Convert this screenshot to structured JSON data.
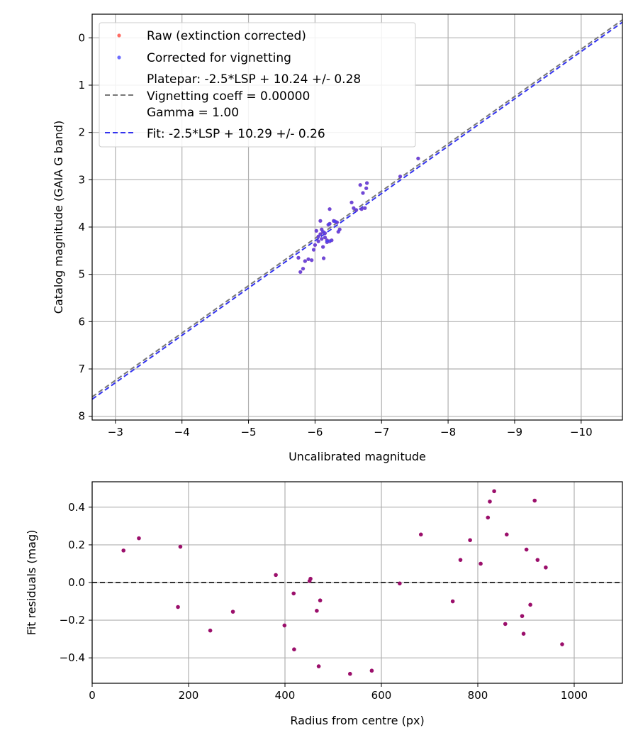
{
  "chart_data": [
    {
      "type": "scatter",
      "xlabel": "Uncalibrated magnitude",
      "ylabel": "Catalog magnitude (GAIA G band)",
      "xlim": [
        -2.65,
        -10.62
      ],
      "ylim": [
        8.08,
        -0.5
      ],
      "x_ticks": [
        -3,
        -4,
        -5,
        -6,
        -7,
        -8,
        -9,
        -10
      ],
      "x_tick_labels": [
        "−3",
        "−4",
        "−5",
        "−6",
        "−7",
        "−8",
        "−9",
        "−10"
      ],
      "y_ticks": [
        0,
        1,
        2,
        3,
        4,
        5,
        6,
        7,
        8
      ],
      "y_tick_labels": [
        "0",
        "1",
        "2",
        "3",
        "4",
        "5",
        "6",
        "7",
        "8"
      ],
      "grid": true,
      "legend_position": "top-left",
      "colors": {
        "raw": "#ff3b30",
        "corrected": "#3d3dff",
        "overlap": "#5a10b0",
        "platepar_line": "#777777",
        "fit_line": "#3333ee"
      },
      "legend": {
        "raw": "Raw (extinction corrected)",
        "corrected": "Corrected for vignetting",
        "platepar": "Platepar: -2.5*LSP + 10.24 +/- 0.28",
        "vignetting": "Vignetting coeff = 0.00000",
        "gamma": "Gamma = 1.00",
        "fit": "Fit: -2.5*LSP + 10.29 +/- 0.26"
      },
      "lines": [
        {
          "name": "platepar",
          "style": "dashed",
          "slope": 1,
          "intercept": 10.24
        },
        {
          "name": "fit",
          "style": "dashed",
          "slope": 1,
          "intercept": 10.29
        }
      ],
      "series": [
        {
          "name": "Raw (extinction corrected)",
          "x": [
            -7.55,
            -7.28,
            -6.78,
            -6.77,
            -6.72,
            -6.75,
            -6.68,
            -6.7,
            -6.62,
            -6.58,
            -6.55,
            -6.22,
            -6.3,
            -6.33,
            -6.37,
            -6.35,
            -6.28,
            -6.2,
            -6.18,
            -6.22,
            -6.15,
            -6.12,
            -6.08,
            -6.05,
            -6.02,
            -6.05,
            -6.1,
            -6.15,
            -6.12,
            -6.25,
            -6.18,
            -6.0,
            -5.98,
            -5.9,
            -5.85,
            -5.82,
            -5.78,
            -5.75,
            -6.1,
            -6.08,
            -6.13,
            -6.22,
            -5.95
          ],
          "y": [
            2.55,
            2.93,
            3.07,
            3.18,
            3.28,
            3.6,
            3.11,
            3.62,
            3.64,
            3.6,
            3.48,
            3.62,
            3.88,
            3.9,
            4.05,
            4.1,
            3.87,
            3.95,
            4.28,
            4.3,
            4.13,
            4.1,
            4.15,
            4.2,
            4.08,
            4.3,
            4.05,
            4.22,
            4.42,
            4.28,
            4.32,
            4.38,
            4.48,
            4.68,
            4.72,
            4.88,
            4.95,
            4.65,
            4.25,
            3.87,
            4.66,
            3.93,
            4.7
          ]
        },
        {
          "name": "Corrected for vignetting",
          "x": [
            -7.55,
            -7.28,
            -6.78,
            -6.77,
            -6.72,
            -6.75,
            -6.68,
            -6.7,
            -6.62,
            -6.58,
            -6.55,
            -6.22,
            -6.3,
            -6.33,
            -6.37,
            -6.35,
            -6.28,
            -6.2,
            -6.18,
            -6.22,
            -6.15,
            -6.12,
            -6.08,
            -6.05,
            -6.02,
            -6.05,
            -6.1,
            -6.15,
            -6.12,
            -6.25,
            -6.18,
            -6.0,
            -5.98,
            -5.9,
            -5.85,
            -5.82,
            -5.78,
            -5.75,
            -6.1,
            -6.08,
            -6.13,
            -6.22,
            -5.95
          ],
          "y": [
            2.55,
            2.93,
            3.07,
            3.18,
            3.28,
            3.6,
            3.11,
            3.62,
            3.64,
            3.6,
            3.48,
            3.62,
            3.88,
            3.9,
            4.05,
            4.1,
            3.87,
            3.95,
            4.28,
            4.3,
            4.13,
            4.1,
            4.15,
            4.2,
            4.08,
            4.3,
            4.05,
            4.22,
            4.42,
            4.28,
            4.32,
            4.38,
            4.48,
            4.68,
            4.72,
            4.88,
            4.95,
            4.65,
            4.25,
            3.87,
            4.66,
            3.93,
            4.7
          ]
        }
      ]
    },
    {
      "type": "scatter",
      "xlabel": "Radius from centre (px)",
      "ylabel": "Fit residuals (mag)",
      "xlim": [
        0,
        1100
      ],
      "ylim": [
        -0.535,
        0.535
      ],
      "x_ticks": [
        0,
        200,
        400,
        600,
        800,
        1000
      ],
      "x_tick_labels": [
        "0",
        "200",
        "400",
        "600",
        "800",
        "1000"
      ],
      "y_ticks": [
        -0.4,
        -0.2,
        0.0,
        0.2,
        0.4
      ],
      "y_tick_labels": [
        "−0.4",
        "−0.2",
        "0.0",
        "0.2",
        "0.4"
      ],
      "grid": true,
      "zero_line": {
        "y": 0,
        "style": "dashed",
        "color": "#333333"
      },
      "point_color": "#9b0f6b",
      "series": [
        {
          "name": "Residuals",
          "x": [
            65,
            97,
            178,
            183,
            245,
            292,
            381,
            399,
            418,
            419,
            451,
            453,
            466,
            470,
            473,
            535,
            580,
            638,
            682,
            748,
            764,
            784,
            806,
            821,
            825,
            834,
            857,
            860,
            892,
            895,
            901,
            909,
            918,
            924,
            941,
            975
          ],
          "y": [
            0.17,
            0.235,
            -0.13,
            0.19,
            -0.255,
            -0.155,
            0.04,
            -0.228,
            -0.058,
            -0.355,
            0.008,
            0.02,
            -0.15,
            -0.445,
            -0.095,
            -0.485,
            -0.468,
            -0.005,
            0.255,
            -0.1,
            0.12,
            0.225,
            0.1,
            0.345,
            0.43,
            0.485,
            -0.22,
            0.255,
            -0.178,
            -0.272,
            0.175,
            -0.118,
            0.435,
            0.12,
            0.08,
            -0.328
          ]
        }
      ]
    }
  ]
}
